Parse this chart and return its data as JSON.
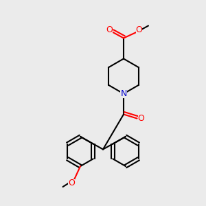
{
  "bg_color": "#ebebeb",
  "bond_color": "#000000",
  "oxygen_color": "#ff0000",
  "nitrogen_color": "#0000cc",
  "line_width": 1.5,
  "figsize": [
    3.0,
    3.0
  ],
  "dpi": 100,
  "xlim": [
    0,
    10
  ],
  "ylim": [
    0,
    10
  ]
}
